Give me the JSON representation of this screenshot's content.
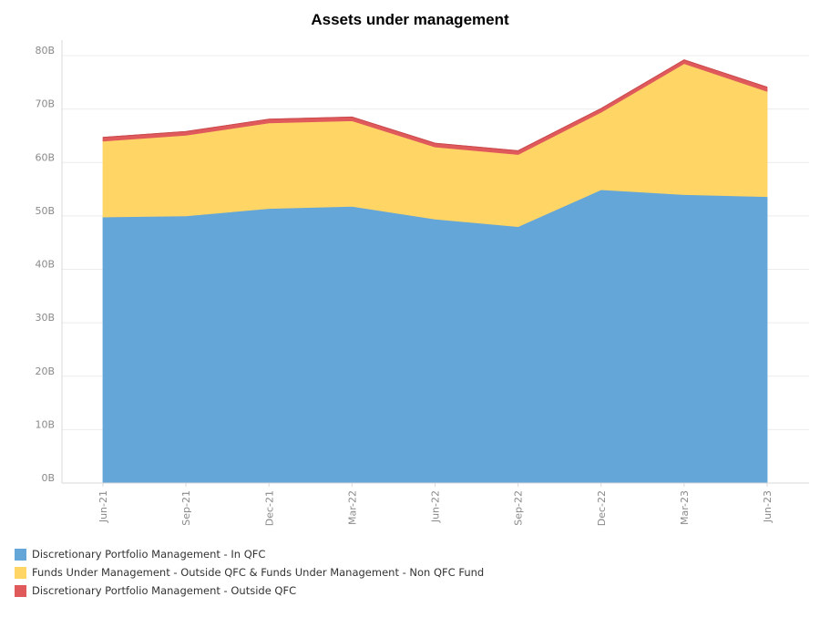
{
  "colors": {
    "dpm_in_qfc": "#64a6d8",
    "fum": "#ffd566",
    "dpm_outside": "#e05a5c",
    "grid": "#ececec",
    "axis": "#d9d9d9"
  },
  "chart_data": {
    "type": "area",
    "stacked": true,
    "title": "Assets under management",
    "xlabel": "",
    "ylabel": "",
    "ylim": [
      0,
      80
    ],
    "yticks": [
      0,
      10,
      20,
      30,
      40,
      50,
      60,
      70,
      80
    ],
    "ytick_labels": [
      "0B",
      "10B",
      "20B",
      "30B",
      "40B",
      "50B",
      "60B",
      "70B",
      "80B"
    ],
    "categories": [
      "Jun-21",
      "Sep-21",
      "Dec-21",
      "Mar-22",
      "Jun-22",
      "Sep-22",
      "Dec-22",
      "Mar-23",
      "Jun-23"
    ],
    "series": [
      {
        "name": "Discretionary Portfolio Management -  In QFC",
        "color_key": "dpm_in_qfc",
        "values": [
          49.8,
          50.0,
          51.4,
          51.8,
          49.4,
          48.0,
          54.9,
          54.0,
          53.6
        ]
      },
      {
        "name": "Funds Under Management - Outside QFC & Funds Under Management - Non QFC Fund",
        "color_key": "fum",
        "values": [
          14.2,
          15.1,
          16.0,
          16.0,
          13.5,
          13.5,
          14.5,
          24.5,
          19.7
        ]
      },
      {
        "name": "Discretionary Portfolio Management - Outside QFC",
        "color_key": "dpm_outside",
        "values": [
          0.7,
          0.7,
          0.7,
          0.7,
          0.7,
          0.7,
          0.7,
          0.7,
          0.8
        ]
      }
    ],
    "legend_position": "bottom-left"
  }
}
